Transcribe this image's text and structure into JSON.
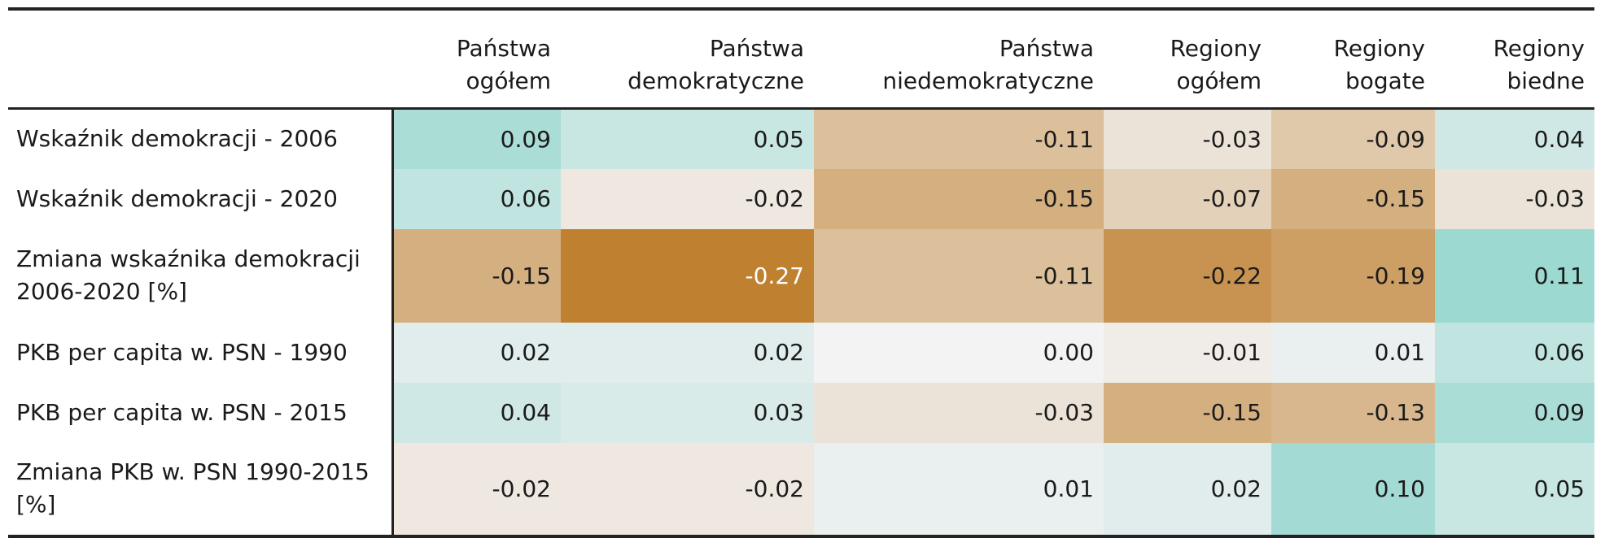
{
  "chart_data": {
    "type": "heatmap",
    "columns": [
      "Państwa ogółem",
      "Państwa demokratyczne",
      "Państwa niedemokratyczne",
      "Regiony ogółem",
      "Regiony bogate",
      "Regiony biedne"
    ],
    "rows": [
      "Wskaźnik demokracji - 2006",
      "Wskaźnik demokracji - 2020",
      "Zmiana wskaźnika demokracji 2006-2020 [%]",
      "PKB per capita w. PSN - 1990",
      "PKB per capita w. PSN - 2015",
      "Zmiana PKB w. PSN 1990-2015 [%]"
    ],
    "values": [
      [
        0.09,
        0.05,
        -0.11,
        -0.03,
        -0.09,
        0.04
      ],
      [
        0.06,
        -0.02,
        -0.15,
        -0.07,
        -0.15,
        -0.03
      ],
      [
        -0.15,
        -0.27,
        -0.11,
        -0.22,
        -0.19,
        0.11
      ],
      [
        0.02,
        0.02,
        0.0,
        -0.01,
        0.01,
        0.06
      ],
      [
        0.04,
        0.03,
        -0.03,
        -0.15,
        -0.13,
        0.09
      ],
      [
        -0.02,
        -0.02,
        0.01,
        0.02,
        0.1,
        0.05
      ]
    ],
    "labels": [
      [
        "0.09",
        "0.05",
        "-0.11",
        "-0.03",
        "-0.09",
        "0.04"
      ],
      [
        "0.06",
        "-0.02",
        "-0.15",
        "-0.07",
        "-0.15",
        "-0.03"
      ],
      [
        "-0.15",
        "-0.27",
        "-0.11",
        "-0.22",
        "-0.19",
        "0.11"
      ],
      [
        "0.02",
        "0.02",
        "0.00",
        "-0.01",
        "0.01",
        "0.06"
      ],
      [
        "0.04",
        "0.03",
        "-0.03",
        "-0.15",
        "-0.13",
        "0.09"
      ],
      [
        "-0.02",
        "-0.02",
        "0.01",
        "0.02",
        "0.10",
        "0.05"
      ]
    ],
    "color_scale": {
      "negative": "#bf8030",
      "neutral": "#f3f3f3",
      "positive": "#2fb8a6",
      "range": [
        -0.27,
        0.27
      ]
    }
  }
}
